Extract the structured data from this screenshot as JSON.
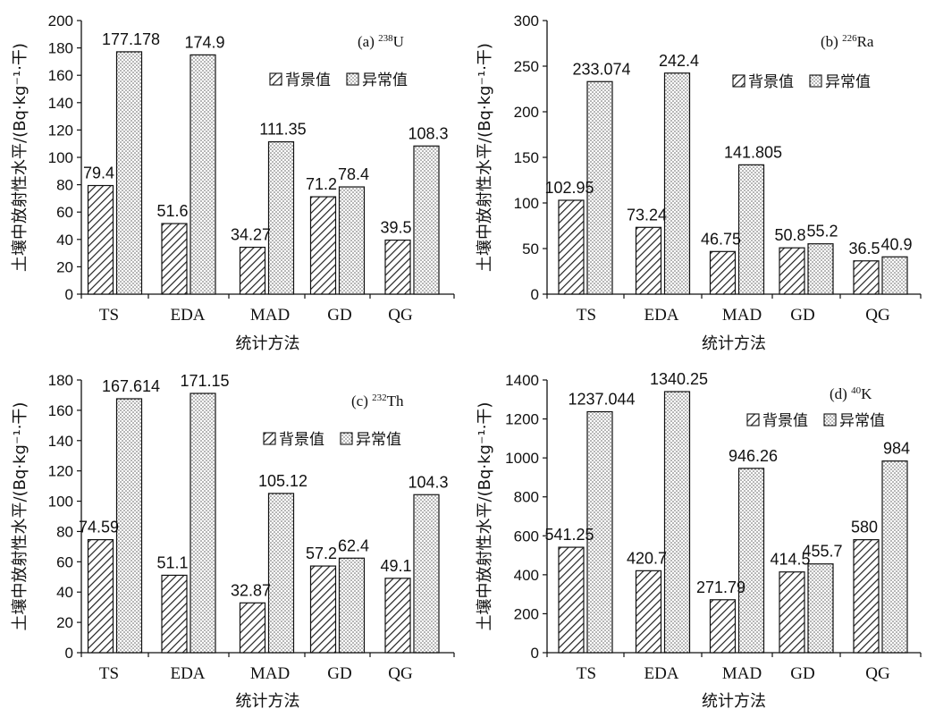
{
  "legend": {
    "background": "背景值",
    "anomaly": "异常值"
  },
  "colors": {
    "axis": "#111111",
    "bar_outline": "#111111",
    "hatch": "#222222",
    "dots": "#555555"
  },
  "chart_data": [
    {
      "type": "bar",
      "panel_label": "(a)",
      "isotope_mass": "238",
      "isotope_symbol": "U",
      "categories": [
        "TS",
        "EDA",
        "MAD",
        "GD",
        "QG"
      ],
      "series": [
        {
          "name": "背景值",
          "values": [
            79.4,
            51.6,
            34.27,
            71.2,
            39.5
          ],
          "labels": [
            "79.4",
            "51.6",
            "34.27",
            "71.2",
            "39.5"
          ]
        },
        {
          "name": "异常值",
          "values": [
            177.178,
            174.9,
            111.35,
            78.4,
            108.3
          ],
          "labels": [
            "177.178",
            "174.9",
            "111.35",
            "78.4",
            "108.3"
          ]
        }
      ],
      "ylim": [
        0,
        200
      ],
      "yticks": [
        0,
        20,
        40,
        60,
        80,
        100,
        120,
        140,
        160,
        180,
        200
      ],
      "xlabel": "统计方法",
      "ylabel": "土壤中放射性水平/(Bq·kg⁻¹·干)",
      "legend_position": "top-right"
    },
    {
      "type": "bar",
      "panel_label": "(b)",
      "isotope_mass": "226",
      "isotope_symbol": "Ra",
      "categories": [
        "TS",
        "EDA",
        "MAD",
        "GD",
        "QG"
      ],
      "series": [
        {
          "name": "背景值",
          "values": [
            102.95,
            73.24,
            46.75,
            50.8,
            36.5
          ],
          "labels": [
            "102.95",
            "73.24",
            "46.75",
            "50.8",
            "36.5"
          ]
        },
        {
          "name": "异常值",
          "values": [
            233.074,
            242.4,
            141.805,
            55.2,
            40.9
          ],
          "labels": [
            "233.074",
            "242.4",
            "141.805",
            "55.2",
            "40.9"
          ]
        }
      ],
      "ylim": [
        0,
        300
      ],
      "yticks": [
        0,
        50,
        100,
        150,
        200,
        250,
        300
      ],
      "xlabel": "统计方法",
      "ylabel": "土壤中放射性水平/(Bq·kg⁻¹·干)",
      "legend_position": "top-right"
    },
    {
      "type": "bar",
      "panel_label": "(c)",
      "isotope_mass": "232",
      "isotope_symbol": "Th",
      "categories": [
        "TS",
        "EDA",
        "MAD",
        "GD",
        "QG"
      ],
      "series": [
        {
          "name": "背景值",
          "values": [
            74.59,
            51.1,
            32.87,
            57.2,
            49.1
          ],
          "labels": [
            "74.59",
            "51.1",
            "32.87",
            "57.2",
            "49.1"
          ]
        },
        {
          "name": "异常值",
          "values": [
            167.614,
            171.15,
            105.12,
            62.4,
            104.3
          ],
          "labels": [
            "167.614",
            "171.15",
            "105.12",
            "62.4",
            "104.3"
          ]
        }
      ],
      "ylim": [
        0,
        180
      ],
      "yticks": [
        0,
        20,
        40,
        60,
        80,
        100,
        120,
        140,
        160,
        180
      ],
      "xlabel": "统计方法",
      "ylabel": "土壤中放射性水平/(Bq·kg⁻¹·干)",
      "legend_position": "top-right"
    },
    {
      "type": "bar",
      "panel_label": "(d)",
      "isotope_mass": "40",
      "isotope_symbol": "K",
      "categories": [
        "TS",
        "EDA",
        "MAD",
        "GD",
        "QG"
      ],
      "series": [
        {
          "name": "背景值",
          "values": [
            541.25,
            420.7,
            271.79,
            414.5,
            580
          ],
          "labels": [
            "541.25",
            "420.7",
            "271.79",
            "414.5",
            "580"
          ]
        },
        {
          "name": "异常值",
          "values": [
            1237.044,
            1340.25,
            946.26,
            455.7,
            984
          ],
          "labels": [
            "1237.044",
            "1340.25",
            "946.26",
            "455.7",
            "984"
          ]
        }
      ],
      "ylim": [
        0,
        1400
      ],
      "yticks": [
        0,
        200,
        400,
        600,
        800,
        1000,
        1200,
        1400
      ],
      "xlabel": "统计方法",
      "ylabel": "土壤中放射性水平/(Bq·kg⁻¹·干)",
      "legend_position": "top-right"
    }
  ]
}
